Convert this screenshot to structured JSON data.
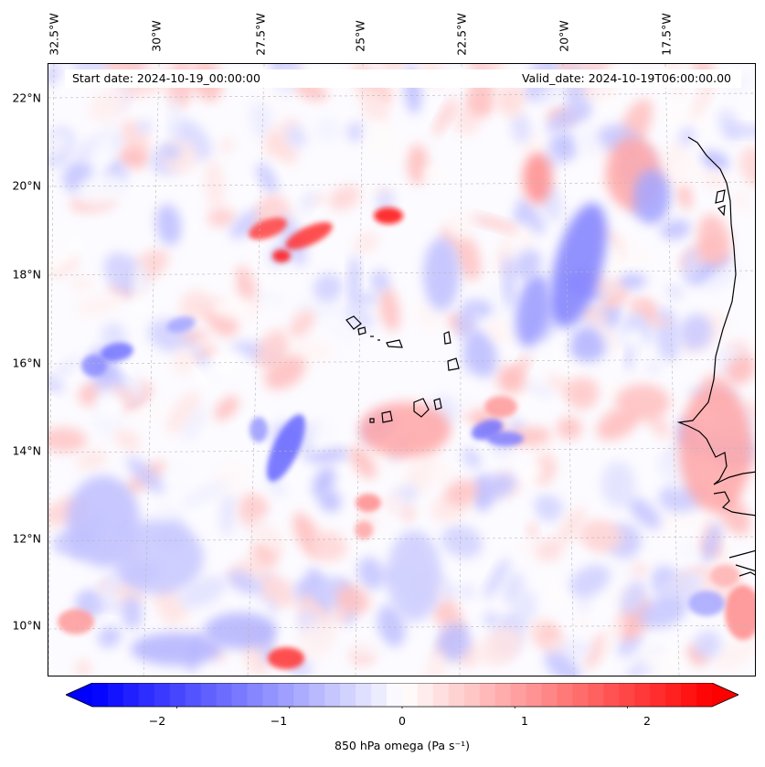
{
  "header": {
    "start_date": "Start date: 2024-10-19_00:00:00",
    "valid_date": "Valid_date: 2024-10-19T06:00:00.00"
  },
  "lat_labels": [
    "22°N",
    "20°N",
    "18°N",
    "16°N",
    "14°N",
    "12°N",
    "10°N"
  ],
  "lon_labels": [
    "32.5°W",
    "30°W",
    "27.5°W",
    "25°W",
    "22.5°W",
    "20°W",
    "17.5°W"
  ],
  "colorbar": {
    "label": "850 hPa omega (Pa s⁻¹)",
    "ticks": [
      "−2",
      "−1",
      "0",
      "1",
      "2"
    ],
    "range": [
      -2.75,
      2.75
    ],
    "colormap": "bwr",
    "extend": "both"
  },
  "colors": {
    "negative": "#0000ff",
    "neutral": "#ffffff",
    "positive": "#ff0000",
    "coastline": "#000000",
    "gridline": "#b0b0b0"
  },
  "map": {
    "variable": "850 hPa omega",
    "extent_lon": [
      -33,
      -15.5
    ],
    "extent_lat": [
      8.8,
      22.8
    ],
    "features": [
      "Cape Verde islands",
      "West African coastline"
    ]
  }
}
